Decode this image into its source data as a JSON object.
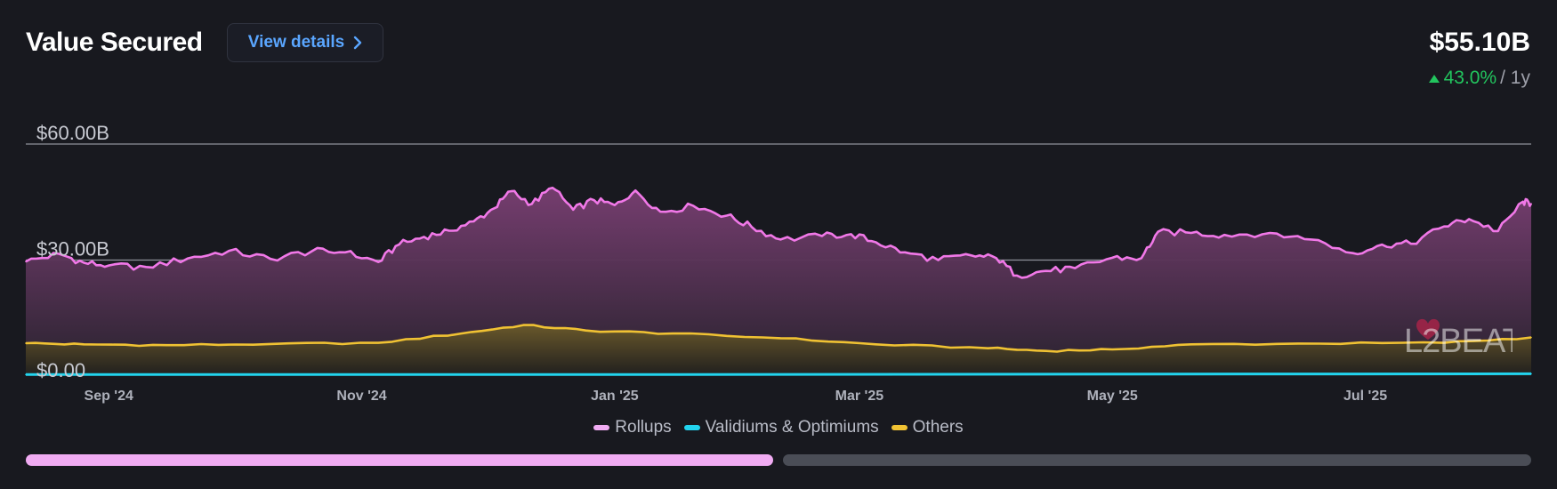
{
  "header": {
    "title": "Value Secured",
    "details_button": "View details",
    "total_value": "$55.10B",
    "change_pct": "43.0%",
    "change_period": "/ 1y"
  },
  "colors": {
    "rollups": "#f178e8",
    "validiums": "#22d3ee",
    "others": "#f0c233",
    "up": "#22c55e",
    "accent": "#5aa6ff"
  },
  "watermark": {
    "text": "L2BEAT"
  },
  "chart_data": {
    "type": "area",
    "title": "Value Secured",
    "y_unit": "billion USD",
    "ylim": [
      0,
      60
    ],
    "y_ticks": [
      {
        "value": 0,
        "label": "$0.00"
      },
      {
        "value": 30,
        "label": "$30.00B"
      },
      {
        "value": 60,
        "label": "$60.00B"
      }
    ],
    "x_range": [
      "2024-08-12",
      "2025-08-10"
    ],
    "x_ticks": [
      {
        "date": "2024-09-01",
        "label": "Sep '24"
      },
      {
        "date": "2024-11-01",
        "label": "Nov '24"
      },
      {
        "date": "2025-01-01",
        "label": "Jan '25"
      },
      {
        "date": "2025-03-01",
        "label": "Mar '25"
      },
      {
        "date": "2025-05-01",
        "label": "May '25"
      },
      {
        "date": "2025-07-01",
        "label": "Jul '25"
      }
    ],
    "legend": [
      "Rollups",
      "Validiums & Optimiums",
      "Others"
    ],
    "series": [
      {
        "name": "Rollups",
        "key": "rollups",
        "stacked_total": true,
        "points": [
          [
            "2024-08-12",
            29.6
          ],
          [
            "2024-08-20",
            31.6
          ],
          [
            "2024-08-26",
            29.3
          ],
          [
            "2024-09-01",
            28.6
          ],
          [
            "2024-09-10",
            28.2
          ],
          [
            "2024-09-20",
            30.4
          ],
          [
            "2024-09-30",
            32.4
          ],
          [
            "2024-10-10",
            30.3
          ],
          [
            "2024-10-20",
            32.3
          ],
          [
            "2024-10-28",
            32.0
          ],
          [
            "2024-11-05",
            29.5
          ],
          [
            "2024-11-10",
            34.0
          ],
          [
            "2024-11-16",
            36.0
          ],
          [
            "2024-11-22",
            37.6
          ],
          [
            "2024-11-28",
            40.0
          ],
          [
            "2024-12-03",
            43.4
          ],
          [
            "2024-12-07",
            47.8
          ],
          [
            "2024-12-12",
            44.5
          ],
          [
            "2024-12-17",
            48.7
          ],
          [
            "2024-12-22",
            43.0
          ],
          [
            "2024-12-27",
            45.5
          ],
          [
            "2025-01-01",
            44.2
          ],
          [
            "2025-01-06",
            48.0
          ],
          [
            "2025-01-12",
            42.5
          ],
          [
            "2025-01-20",
            44.0
          ],
          [
            "2025-01-28",
            41.5
          ],
          [
            "2025-02-03",
            38.6
          ],
          [
            "2025-02-10",
            35.3
          ],
          [
            "2025-02-20",
            36.2
          ],
          [
            "2025-02-27",
            36.7
          ],
          [
            "2025-03-05",
            34.6
          ],
          [
            "2025-03-12",
            32.0
          ],
          [
            "2025-03-20",
            30.0
          ],
          [
            "2025-03-28",
            31.2
          ],
          [
            "2025-04-03",
            30.5
          ],
          [
            "2025-04-08",
            26.0
          ],
          [
            "2025-04-15",
            27.2
          ],
          [
            "2025-04-22",
            27.9
          ],
          [
            "2025-05-01",
            30.6
          ],
          [
            "2025-05-08",
            30.5
          ],
          [
            "2025-05-12",
            37.3
          ],
          [
            "2025-05-20",
            37.0
          ],
          [
            "2025-05-28",
            36.5
          ],
          [
            "2025-06-08",
            37.0
          ],
          [
            "2025-06-18",
            35.3
          ],
          [
            "2025-06-28",
            31.8
          ],
          [
            "2025-07-05",
            34.0
          ],
          [
            "2025-07-12",
            34.2
          ],
          [
            "2025-07-20",
            38.7
          ],
          [
            "2025-07-26",
            40.6
          ],
          [
            "2025-08-02",
            37.5
          ],
          [
            "2025-08-08",
            45.1
          ],
          [
            "2025-08-10",
            44.6
          ]
        ]
      },
      {
        "name": "Validiums & Optimiums",
        "key": "validiums",
        "points": [
          [
            "2024-08-12",
            0.4
          ],
          [
            "2025-01-01",
            0.4
          ],
          [
            "2025-05-01",
            0.5
          ],
          [
            "2025-08-10",
            0.6
          ]
        ]
      },
      {
        "name": "Others",
        "key": "others",
        "points": [
          [
            "2024-08-12",
            8.5
          ],
          [
            "2024-08-26",
            8.2
          ],
          [
            "2024-09-15",
            8.0
          ],
          [
            "2024-10-10",
            8.3
          ],
          [
            "2024-11-05",
            8.6
          ],
          [
            "2024-11-25",
            11.0
          ],
          [
            "2024-12-10",
            13.2
          ],
          [
            "2024-12-25",
            11.8
          ],
          [
            "2025-01-15",
            11.0
          ],
          [
            "2025-02-10",
            9.8
          ],
          [
            "2025-03-05",
            8.2
          ],
          [
            "2025-04-01",
            7.2
          ],
          [
            "2025-04-15",
            6.5
          ],
          [
            "2025-05-01",
            6.9
          ],
          [
            "2025-05-20",
            8.2
          ],
          [
            "2025-06-20",
            8.4
          ],
          [
            "2025-07-20",
            8.6
          ],
          [
            "2025-08-10",
            10.0
          ]
        ]
      }
    ]
  }
}
